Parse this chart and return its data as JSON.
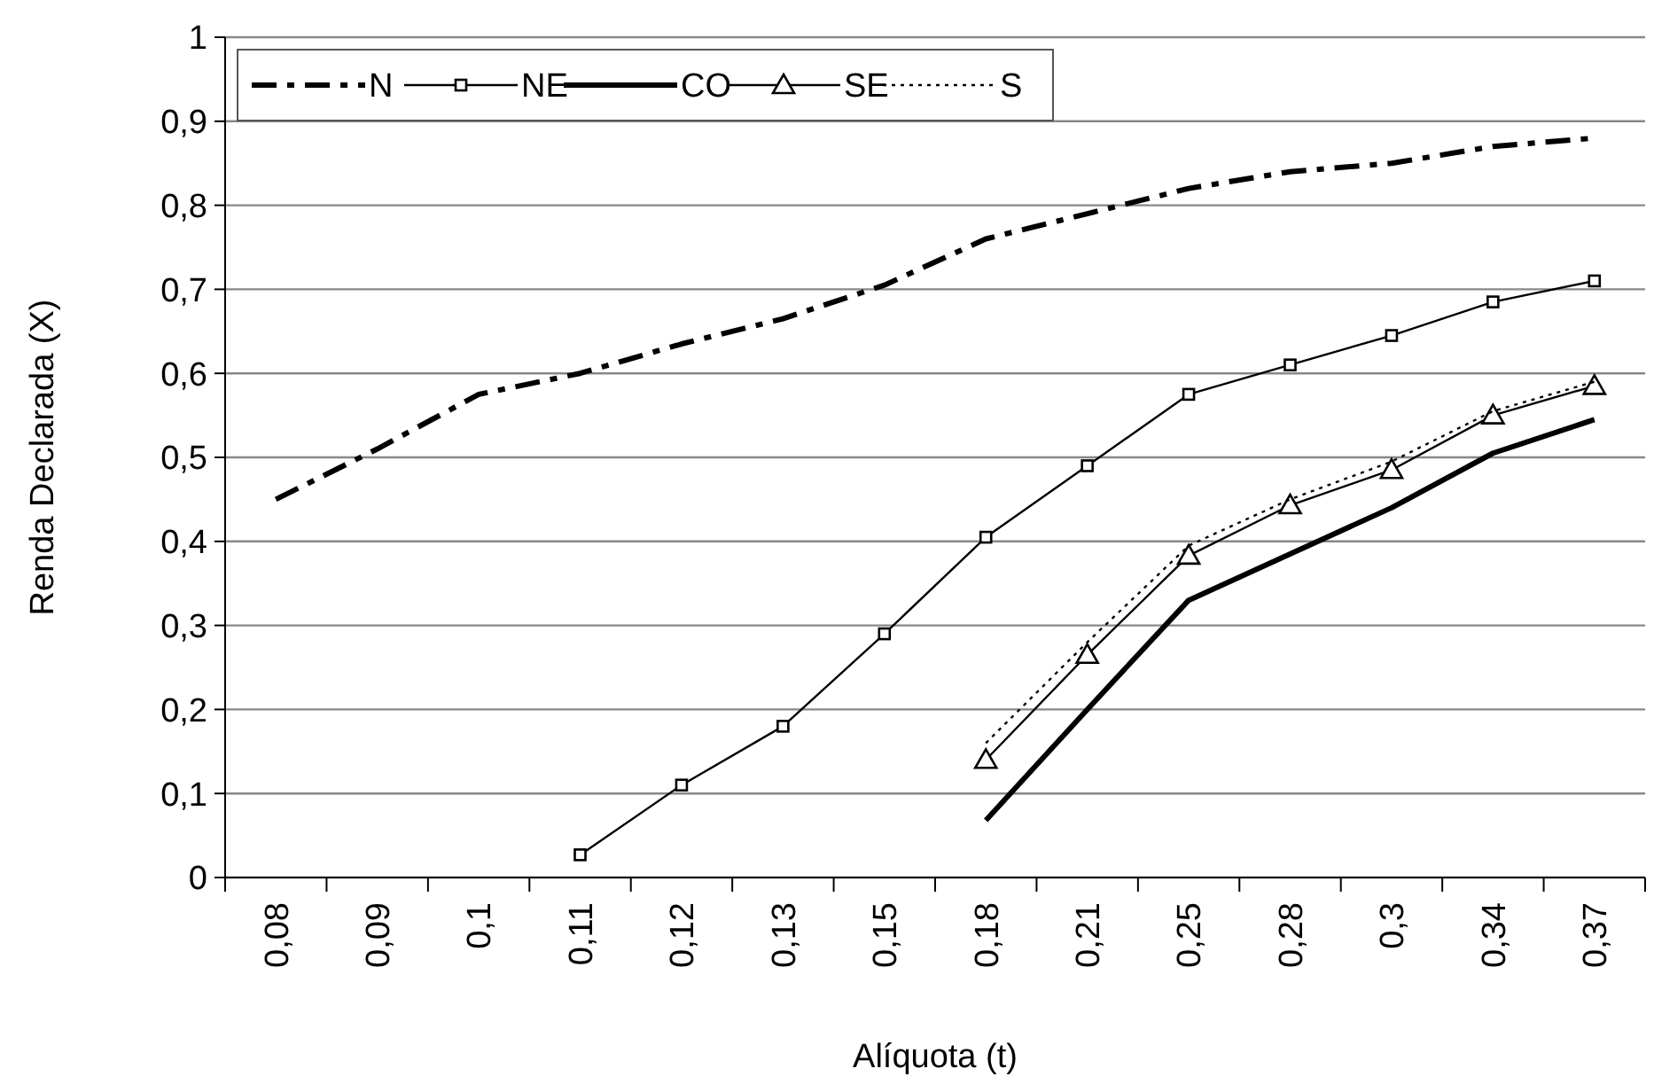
{
  "chart_data": {
    "type": "line",
    "xlabel": "Alíquota (t)",
    "ylabel": "Renda Declarada (X)",
    "categories": [
      "0,08",
      "0,09",
      "0,1",
      "0,11",
      "0,12",
      "0,13",
      "0,15",
      "0,18",
      "0,21",
      "0,25",
      "0,28",
      "0,3",
      "0,34",
      "0,37"
    ],
    "ylim": [
      0,
      1
    ],
    "yticks": [
      0,
      {
        "value": 0.1,
        "label": "0,1"
      },
      {
        "value": 0.2,
        "label": "0,2"
      },
      {
        "value": 0.3,
        "label": "0,3"
      },
      {
        "value": 0.4,
        "label": "0,4"
      },
      {
        "value": 0.5,
        "label": "0,5"
      },
      {
        "value": 0.6,
        "label": "0,6"
      },
      {
        "value": 0.7,
        "label": "0,7"
      },
      {
        "value": 0.8,
        "label": "0,8"
      },
      {
        "value": 0.9,
        "label": "0,9"
      },
      1
    ],
    "grid": "y",
    "legend": "top left",
    "series": [
      {
        "name": "N",
        "color": "#000000",
        "line_style": "dashed",
        "marker": "none",
        "values": [
          0.45,
          0.51,
          0.575,
          0.6,
          0.635,
          0.665,
          0.705,
          0.76,
          0.79,
          0.82,
          0.84,
          0.85,
          0.87,
          0.88
        ]
      },
      {
        "name": "NE",
        "color": "#000000",
        "line_style": "solid",
        "marker": "square",
        "values": [
          null,
          null,
          null,
          0.027,
          0.11,
          0.18,
          0.29,
          0.405,
          0.49,
          0.575,
          0.61,
          0.645,
          0.685,
          0.71
        ]
      },
      {
        "name": "CO",
        "color": "#000000",
        "line_style": "solid",
        "marker": "none",
        "values": [
          null,
          null,
          null,
          null,
          null,
          null,
          null,
          0.068,
          0.2,
          0.33,
          0.385,
          0.44,
          0.505,
          0.545
        ]
      },
      {
        "name": "SE",
        "color": "#000000",
        "line_style": "solid",
        "marker": "triangle",
        "values": [
          null,
          null,
          null,
          null,
          null,
          null,
          null,
          0.14,
          0.265,
          0.383,
          0.443,
          0.485,
          0.55,
          0.585
        ]
      },
      {
        "name": "S",
        "color": "#000000",
        "line_style": "dotted",
        "marker": "none",
        "values": [
          null,
          null,
          null,
          null,
          null,
          null,
          null,
          0.16,
          0.28,
          0.395,
          0.45,
          0.495,
          0.555,
          0.59
        ]
      }
    ]
  }
}
